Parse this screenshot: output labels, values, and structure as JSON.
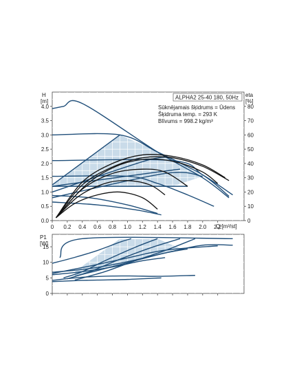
{
  "chart_data": [
    {
      "type": "line",
      "panel": "head",
      "info": {
        "model": "ALPHA2 25-40 180, 50Hz",
        "lines": [
          "Sūknējamais šķidrums = Ūdens",
          "Šķidruma temp. = 293 K",
          "Blīvums = 998.2 kg/m³"
        ]
      },
      "ylabel_left": [
        "H",
        "[m]"
      ],
      "ylabel_right": [
        "eta",
        "[%]"
      ],
      "xlabel": "Q [m³/st]",
      "xlim": [
        0,
        2.55
      ],
      "ylim": [
        0,
        4.5
      ],
      "ylim_right": [
        0,
        90
      ],
      "x_ticks": [
        "0",
        "0.2",
        "0.4",
        "0.6",
        "0.8",
        "1.0",
        "1.2",
        "1.4",
        "1.6",
        "1.8",
        "2.0",
        "2.2"
      ],
      "y_ticks": [
        "0.0",
        "0.5",
        "1.0",
        "1.5",
        "2.0",
        "2.5",
        "3.0",
        "3.5",
        "4.0"
      ],
      "y_ticks_right": [
        "0",
        "10",
        "20",
        "30",
        "40",
        "50",
        "60",
        "70",
        "80"
      ],
      "grid": true,
      "colors": {
        "pump_curve": "#1f4e79",
        "efficiency_curve": "#111111",
        "shaded_area": "#c9dbe9",
        "grid": "#ffffff"
      },
      "shaded_region": [
        [
          0.0,
          1.25
        ],
        [
          0.9,
          3.0
        ],
        [
          1.6,
          2.2
        ],
        [
          2.0,
          1.55
        ],
        [
          1.6,
          1.2
        ],
        [
          0.0,
          1.2
        ]
      ],
      "series": [
        {
          "role": "pump_curve",
          "points": [
            [
              0,
              3.92
            ],
            [
              0.15,
              4.0
            ],
            [
              0.4,
              4.1
            ],
            [
              1.4,
              2.4
            ],
            [
              2.0,
              1.5
            ],
            [
              2.35,
              0.8
            ]
          ]
        },
        {
          "role": "pump_curve",
          "points": [
            [
              0,
              3.0
            ],
            [
              0.9,
              3.0
            ],
            [
              1.4,
              2.4
            ],
            [
              2.0,
              1.6
            ],
            [
              2.35,
              0.85
            ]
          ]
        },
        {
          "role": "pump_curve",
          "points": [
            [
              0,
              2.1
            ],
            [
              1.6,
              2.1
            ],
            [
              2.0,
              1.6
            ],
            [
              2.4,
              0.9
            ]
          ]
        },
        {
          "role": "pump_curve",
          "points": [
            [
              0,
              1.55
            ],
            [
              1.0,
              1.55
            ],
            [
              1.4,
              1.3
            ],
            [
              1.8,
              0.9
            ],
            [
              2.15,
              0.5
            ]
          ]
        },
        {
          "role": "pump_curve",
          "points": [
            [
              0,
              1.2
            ],
            [
              1.45,
              1.2
            ],
            [
              1.8,
              1.2
            ]
          ]
        },
        {
          "role": "pump_curve",
          "points": [
            [
              0,
              0.88
            ],
            [
              0.5,
              0.8
            ],
            [
              1.0,
              0.55
            ],
            [
              1.4,
              0.25
            ]
          ]
        },
        {
          "role": "pump_curve",
          "points": [
            [
              0,
              0.65
            ],
            [
              0.6,
              0.55
            ],
            [
              1.1,
              0.38
            ],
            [
              1.45,
              0.2
            ]
          ]
        },
        {
          "role": "pump_curve",
          "points": [
            [
              0,
              1.25
            ],
            [
              0.9,
              3.0
            ]
          ]
        },
        {
          "role": "pump_curve",
          "points": [
            [
              0,
              1.0
            ],
            [
              1.25,
              2.1
            ],
            [
              1.6,
              2.2
            ]
          ]
        },
        {
          "role": "pump_curve",
          "points": [
            [
              0,
              0.8
            ],
            [
              1.5,
              1.65
            ],
            [
              2.0,
              1.55
            ]
          ]
        },
        {
          "role": "pump_curve",
          "points": [
            [
              0,
              1.2
            ],
            [
              1.4,
              1.7
            ],
            [
              1.7,
              1.8
            ]
          ]
        },
        {
          "role": "efficiency_curve",
          "points": [
            [
              0.05,
              2.0
            ],
            [
              0.4,
              27.0
            ],
            [
              0.8,
              40.0
            ],
            [
              1.2,
              46.0
            ],
            [
              1.6,
              45.0
            ],
            [
              2.0,
              39.0
            ],
            [
              2.3,
              30.0
            ]
          ]
        },
        {
          "role": "efficiency_curve",
          "points": [
            [
              0.05,
              2.0
            ],
            [
              0.4,
              25.0
            ],
            [
              0.8,
              37.5
            ],
            [
              1.2,
              44.0
            ],
            [
              1.6,
              44.0
            ],
            [
              2.0,
              38.0
            ],
            [
              2.35,
              28.0
            ]
          ]
        },
        {
          "role": "efficiency_curve",
          "points": [
            [
              0.05,
              2.0
            ],
            [
              0.45,
              25.0
            ],
            [
              0.85,
              38.0
            ],
            [
              1.25,
              43.0
            ],
            [
              1.65,
              41.0
            ],
            [
              2.0,
              34.0
            ],
            [
              2.2,
              26.0
            ]
          ]
        },
        {
          "role": "efficiency_curve",
          "points": [
            [
              0.05,
              2.0
            ],
            [
              0.4,
              22.0
            ],
            [
              0.8,
              33.0
            ],
            [
              1.2,
              36.0
            ],
            [
              1.5,
              34.0
            ],
            [
              1.8,
              24.0
            ]
          ]
        },
        {
          "role": "efficiency_curve",
          "points": [
            [
              0.05,
              2.0
            ],
            [
              0.35,
              17.0
            ],
            [
              0.7,
              26.0
            ],
            [
              1.0,
              28.0
            ],
            [
              1.3,
              25.0
            ],
            [
              1.5,
              18.0
            ]
          ]
        },
        {
          "role": "efficiency_curve",
          "points": [
            [
              0.05,
              2.0
            ],
            [
              0.3,
              12.0
            ],
            [
              0.6,
              18.0
            ],
            [
              0.9,
              20.0
            ],
            [
              1.2,
              16.0
            ],
            [
              1.4,
              8.0
            ]
          ]
        }
      ]
    },
    {
      "type": "line",
      "panel": "power",
      "ylabel_left": [
        "P1",
        "[W]"
      ],
      "xlim": [
        0,
        2.55
      ],
      "ylim": [
        0,
        19
      ],
      "y_ticks": [
        "0",
        "5",
        "10",
        "15"
      ],
      "grid": true,
      "colors": {
        "pump_curve": "#1f4e79",
        "shaded_area": "#c9dbe9",
        "grid": "#ffffff"
      },
      "shaded_region": [
        [
          0.3,
          5.5
        ],
        [
          0.6,
          7.0
        ],
        [
          0.9,
          9.3
        ],
        [
          1.25,
          11.6
        ],
        [
          1.7,
          14.5
        ],
        [
          1.4,
          17.6
        ],
        [
          0.9,
          17.6
        ],
        [
          0.3,
          7.0
        ]
      ],
      "series": [
        {
          "points": [
            [
              0.1,
              11.5
            ],
            [
              0.4,
              17.6
            ],
            [
              2.4,
              17.6
            ]
          ]
        },
        {
          "points": [
            [
              0,
              4.2
            ],
            [
              0.4,
              5.2
            ],
            [
              0.8,
              5.6
            ],
            [
              1.1,
              5.6
            ],
            [
              1.4,
              5.5
            ],
            [
              1.9,
              5.8
            ]
          ]
        },
        {
          "points": [
            [
              0,
              3.8
            ],
            [
              0.3,
              4.1
            ],
            [
              0.6,
              4.3
            ],
            [
              1.0,
              4.5
            ],
            [
              1.45,
              5.0
            ]
          ]
        },
        {
          "points": [
            [
              0,
              6.0
            ],
            [
              0.4,
              7.0
            ],
            [
              0.8,
              8.5
            ],
            [
              1.2,
              10.5
            ],
            [
              1.5,
              11.5
            ]
          ]
        },
        {
          "points": [
            [
              0,
              6.8
            ],
            [
              0.5,
              8.0
            ],
            [
              1.0,
              10.2
            ],
            [
              1.5,
              13.0
            ],
            [
              1.8,
              14.3
            ]
          ]
        },
        {
          "points": [
            [
              0,
              6.4
            ],
            [
              0.5,
              8.8
            ],
            [
              1.0,
              11.4
            ],
            [
              1.5,
              13.9
            ],
            [
              2.2,
              15.3
            ]
          ]
        },
        {
          "points": [
            [
              0,
              9.7
            ],
            [
              0.3,
              11.6
            ],
            [
              0.6,
              13.8
            ],
            [
              0.9,
              16.5
            ],
            [
              1.05,
              17.6
            ]
          ]
        },
        {
          "points": [
            [
              0.15,
              5.0
            ],
            [
              0.4,
              7.0
            ],
            [
              0.7,
              10.5
            ],
            [
              1.1,
              14.8
            ],
            [
              1.4,
              17.6
            ]
          ]
        },
        {
          "points": [
            [
              0.2,
              4.7
            ],
            [
              0.5,
              7.0
            ],
            [
              0.9,
              11.0
            ],
            [
              1.3,
              14.6
            ],
            [
              1.7,
              17.6
            ]
          ]
        },
        {
          "points": [
            [
              0.3,
              4.3
            ],
            [
              0.7,
              7.0
            ],
            [
              1.1,
              10.5
            ],
            [
              1.5,
              13.8
            ],
            [
              1.9,
              17.6
            ]
          ]
        },
        {
          "points": [
            [
              0.3,
              5.5
            ],
            [
              0.7,
              8.0
            ],
            [
              1.1,
              10.5
            ],
            [
              1.5,
              13.0
            ],
            [
              2.0,
              15.5
            ],
            [
              2.4,
              15.5
            ]
          ]
        }
      ]
    }
  ]
}
